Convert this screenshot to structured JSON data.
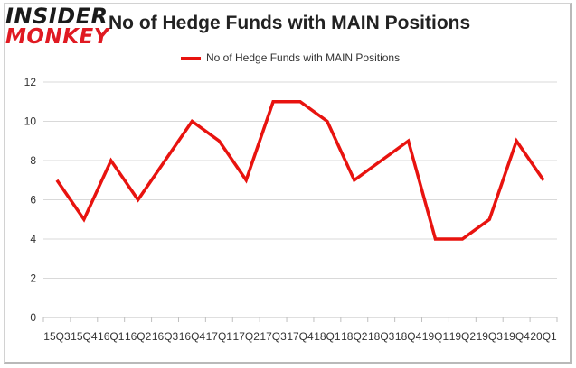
{
  "logo": {
    "line1": "INSIDER",
    "line2": "MONKEY"
  },
  "colors": {
    "series": "#e8130f",
    "grid": "#d9d9d9",
    "axis": "#bfbfbf",
    "logo_red": "#e01a22",
    "frame_shadow": "#b9b9b9"
  },
  "chart_data": {
    "type": "line",
    "title": "No of Hedge Funds with MAIN Positions",
    "categories": [
      "15Q3",
      "15Q4",
      "16Q1",
      "16Q2",
      "16Q3",
      "16Q4",
      "17Q1",
      "17Q2",
      "17Q3",
      "17Q4",
      "18Q1",
      "18Q2",
      "18Q3",
      "18Q4",
      "19Q1",
      "19Q2",
      "19Q3",
      "19Q4",
      "20Q1"
    ],
    "series": [
      {
        "name": "No of Hedge Funds with MAIN Positions",
        "values": [
          7,
          5,
          8,
          6,
          8,
          10,
          9,
          7,
          11,
          11,
          10,
          7,
          8,
          9,
          4,
          4,
          5,
          9,
          7
        ]
      }
    ],
    "xlabel": "",
    "ylabel": "",
    "ylim": [
      0,
      12
    ],
    "yticks": [
      0,
      2,
      4,
      6,
      8,
      10,
      12
    ],
    "grid": true,
    "legend_position": "top-center"
  }
}
